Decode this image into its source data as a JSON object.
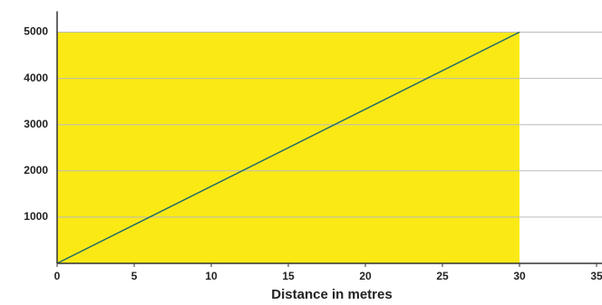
{
  "chart_data": {
    "type": "line",
    "x_label": "Distance in metres",
    "x": [
      0,
      30
    ],
    "series": [
      {
        "kind": "area",
        "color": "#fbe916",
        "values": [
          5000,
          5000
        ]
      },
      {
        "kind": "line",
        "color": "#1f6b6b",
        "values": [
          0,
          5000
        ]
      }
    ],
    "xlim": [
      0,
      35
    ],
    "xticks": [
      0,
      5,
      10,
      15,
      20,
      25,
      30,
      35
    ],
    "ylim": [
      0,
      5450
    ],
    "yticks": [
      1000,
      2000,
      3000,
      4000,
      5000
    ],
    "grid": true
  }
}
